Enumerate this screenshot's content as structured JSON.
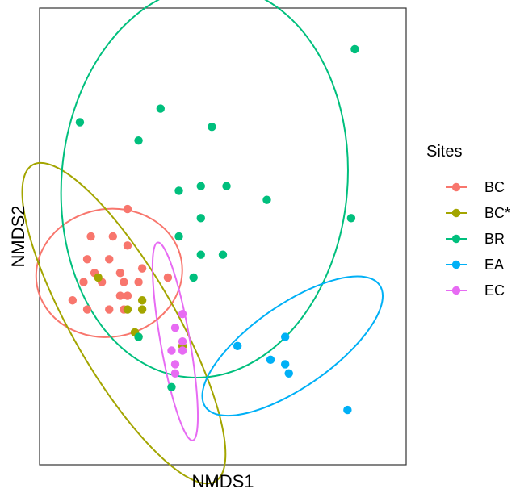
{
  "chart_data": {
    "type": "scatter",
    "title": "",
    "xlabel": "NMDS1",
    "ylabel": "NMDS2",
    "xlim": [
      0,
      100
    ],
    "ylim": [
      0,
      100
    ],
    "grid": false,
    "ticks": false,
    "legend_placement": "right",
    "legend_title": "Sites",
    "series": [
      {
        "name": "BC",
        "color": "#F8766D",
        "points": [
          [
            24,
            48
          ],
          [
            22,
            42
          ],
          [
            19,
            45
          ],
          [
            15,
            42
          ],
          [
            12,
            40
          ],
          [
            13,
            45
          ],
          [
            14,
            50
          ],
          [
            20,
            50
          ],
          [
            23,
            40
          ],
          [
            24,
            37
          ],
          [
            27,
            40
          ],
          [
            22,
            37
          ],
          [
            23,
            34
          ],
          [
            19,
            34
          ],
          [
            13,
            34
          ],
          [
            9,
            36
          ],
          [
            28,
            43
          ],
          [
            35,
            41
          ],
          [
            24,
            56
          ],
          [
            17,
            40
          ]
        ],
        "ellipse": {
          "cx": 19,
          "cy": 42,
          "rx": 20,
          "ry": 14,
          "angle": -10
        }
      },
      {
        "name": "BC*",
        "color": "#A3A500",
        "points": [
          [
            16,
            41
          ],
          [
            28,
            36
          ],
          [
            28,
            34
          ],
          [
            27,
            28
          ],
          [
            26,
            29
          ],
          [
            24,
            34
          ],
          [
            39,
            26
          ]
        ],
        "ellipse": {
          "cx": 23,
          "cy": 31,
          "rx": 14,
          "ry": 40,
          "angle": -30
        }
      },
      {
        "name": "BR",
        "color": "#00BF7D",
        "points": [
          [
            86,
            91
          ],
          [
            11,
            75
          ],
          [
            33,
            78
          ],
          [
            27,
            71
          ],
          [
            47,
            74
          ],
          [
            38,
            60
          ],
          [
            44,
            61
          ],
          [
            51,
            61
          ],
          [
            62,
            58
          ],
          [
            85,
            54
          ],
          [
            44,
            54
          ],
          [
            38,
            50
          ],
          [
            44,
            46
          ],
          [
            50,
            46
          ],
          [
            42,
            41
          ],
          [
            27,
            28
          ],
          [
            36,
            17
          ]
        ],
        "ellipse": {
          "cx": 45,
          "cy": 62,
          "rx": 39,
          "ry": 43,
          "angle": 5
        }
      },
      {
        "name": "EA",
        "color": "#00B0F6",
        "points": [
          [
            54,
            26
          ],
          [
            67,
            28
          ],
          [
            63,
            23
          ],
          [
            67,
            22
          ],
          [
            68,
            20
          ],
          [
            84,
            12
          ]
        ],
        "ellipse": {
          "cx": 69,
          "cy": 26,
          "rx": 29,
          "ry": 9,
          "angle": -35
        }
      },
      {
        "name": "EC",
        "color": "#E76BF3",
        "points": [
          [
            39,
            33
          ],
          [
            37,
            30
          ],
          [
            39,
            25
          ],
          [
            39,
            27
          ],
          [
            36,
            25
          ],
          [
            37,
            20
          ],
          [
            37,
            22
          ]
        ],
        "ellipse": {
          "cx": 37,
          "cy": 27,
          "rx": 4,
          "ry": 22,
          "angle": -10
        }
      }
    ]
  }
}
